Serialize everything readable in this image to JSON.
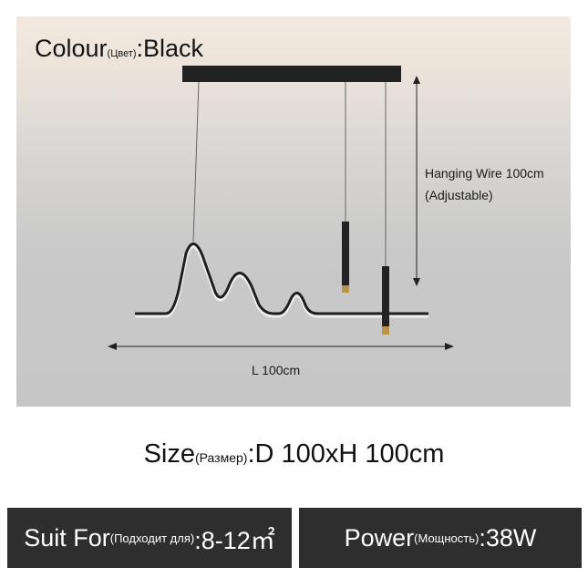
{
  "colour": {
    "label": "Colour",
    "label_ru": "(Цвет)",
    "value": ":Black"
  },
  "annotations": {
    "hanging_wire": "Hanging Wire 100cm",
    "adjustable": "(Adjustable)",
    "length": "L 100cm"
  },
  "size": {
    "label": "Size",
    "label_ru": "(Размер)",
    "value": ":D 100xH 100cm"
  },
  "suit_for": {
    "label": "Suit For",
    "label_ru": "(Подходит для)",
    "value": ":8-12㎡"
  },
  "power": {
    "label": "Power",
    "label_ru": "(Мощность)",
    "value": ":38W"
  },
  "colors": {
    "box_bg": "#2f2e2e",
    "lamp": "#1e1e1e",
    "accent_gold": "#b8954a"
  }
}
